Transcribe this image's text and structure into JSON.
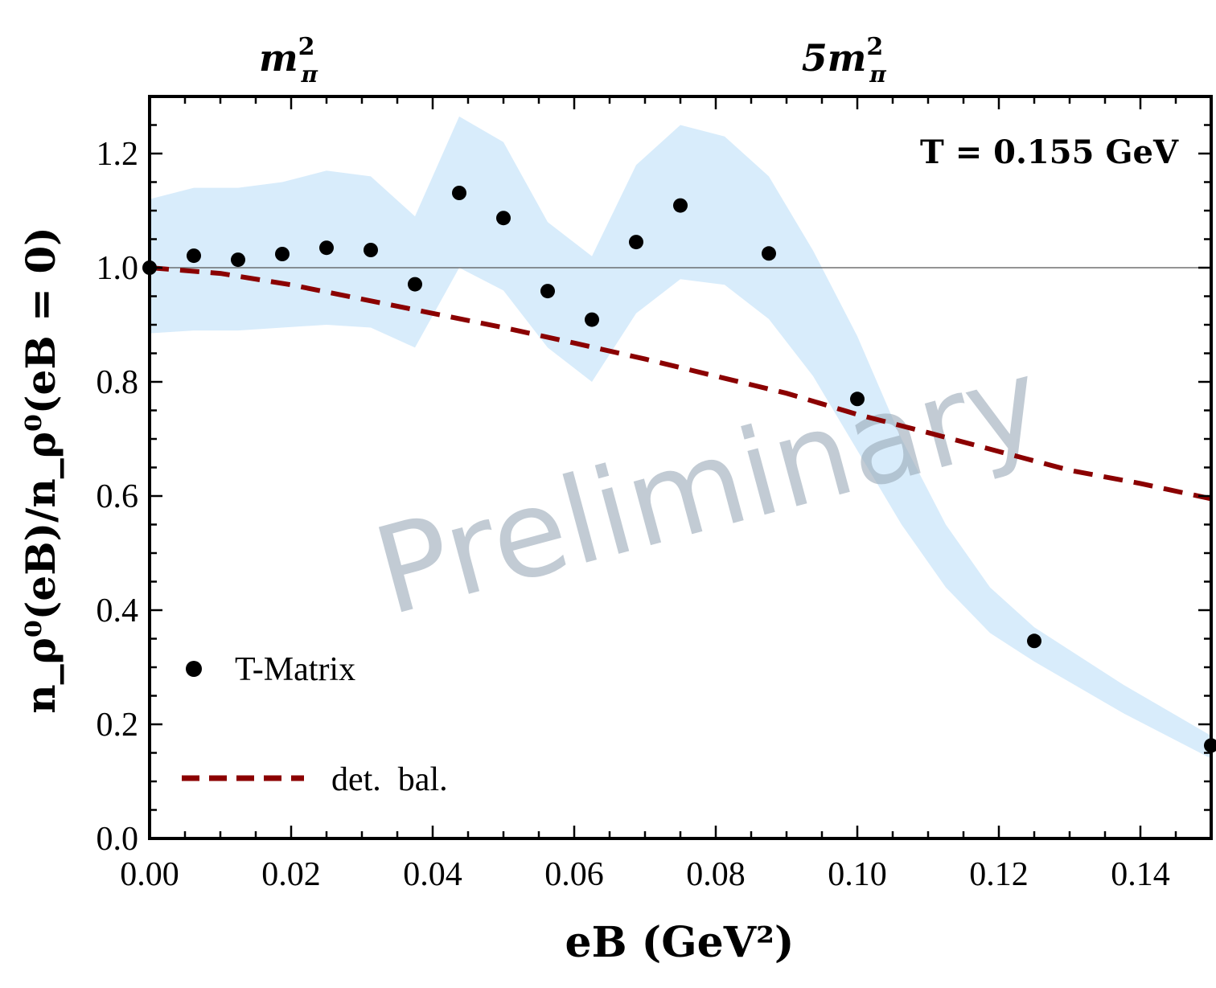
{
  "chart_data": {
    "type": "scatter",
    "title": "",
    "xlabel": "eB (GeV²)",
    "ylabel": "n_ρ⁰(eB)/n_ρ⁰(eB = 0)",
    "xlim": [
      0.0,
      0.15
    ],
    "ylim": [
      0.0,
      1.3
    ],
    "x_ticks": [
      "0.00",
      "0.02",
      "0.04",
      "0.06",
      "0.08",
      "0.10",
      "0.12",
      "0.14"
    ],
    "y_ticks": [
      "0.0",
      "0.2",
      "0.4",
      "0.6",
      "0.8",
      "1.0",
      "1.2"
    ],
    "top_axis_labels": [
      {
        "text": "m",
        "sup": "2",
        "sub": "π",
        "x": 0.0196
      },
      {
        "text": "5m",
        "sup": "2",
        "sub": "π",
        "x": 0.0981
      }
    ],
    "annotation": "T = 0.155 GeV",
    "watermark": "Preliminary",
    "reference_line_y": 1.0,
    "series": [
      {
        "name": "T-Matrix",
        "kind": "points",
        "color": "#000000",
        "x": [
          0.0,
          0.00625,
          0.0125,
          0.01875,
          0.025,
          0.03125,
          0.0375,
          0.04375,
          0.05,
          0.05625,
          0.0625,
          0.06875,
          0.075,
          0.0875,
          0.1,
          0.125,
          0.15
        ],
        "y": [
          1.0,
          1.021,
          1.014,
          1.024,
          1.035,
          1.031,
          0.971,
          1.131,
          1.087,
          0.959,
          0.909,
          1.045,
          1.109,
          1.025,
          0.77,
          0.346,
          0.163
        ]
      },
      {
        "name": "det. bal.",
        "kind": "dashed-line",
        "color": "#8b0000",
        "x": [
          0.0,
          0.01,
          0.02,
          0.03,
          0.04,
          0.05,
          0.06,
          0.07,
          0.08,
          0.09,
          0.1,
          0.11,
          0.12,
          0.13,
          0.14,
          0.15
        ],
        "y": [
          1.0,
          0.99,
          0.97,
          0.945,
          0.92,
          0.895,
          0.868,
          0.84,
          0.81,
          0.78,
          0.743,
          0.711,
          0.678,
          0.645,
          0.622,
          0.595
        ]
      },
      {
        "name": "uncertainty band",
        "kind": "band",
        "color": "#d8ecfb",
        "x": [
          0.0,
          0.00625,
          0.0125,
          0.01875,
          0.025,
          0.03125,
          0.0375,
          0.04375,
          0.05,
          0.05625,
          0.0625,
          0.06875,
          0.075,
          0.08125,
          0.0875,
          0.09375,
          0.1,
          0.10625,
          0.1125,
          0.11875,
          0.125,
          0.1375,
          0.15
        ],
        "upper": [
          1.12,
          1.14,
          1.14,
          1.15,
          1.17,
          1.16,
          1.09,
          1.265,
          1.22,
          1.08,
          1.02,
          1.18,
          1.25,
          1.23,
          1.16,
          1.03,
          0.88,
          0.7,
          0.55,
          0.44,
          0.37,
          0.27,
          0.18
        ],
        "lower": [
          0.885,
          0.89,
          0.89,
          0.895,
          0.9,
          0.895,
          0.86,
          1.0,
          0.96,
          0.86,
          0.8,
          0.92,
          0.98,
          0.97,
          0.91,
          0.81,
          0.68,
          0.55,
          0.44,
          0.36,
          0.31,
          0.22,
          0.14
        ]
      }
    ],
    "legend": [
      {
        "label": "T-Matrix",
        "marker": "dot"
      },
      {
        "label": "det.  bal.",
        "marker": "dashed-line"
      }
    ]
  }
}
